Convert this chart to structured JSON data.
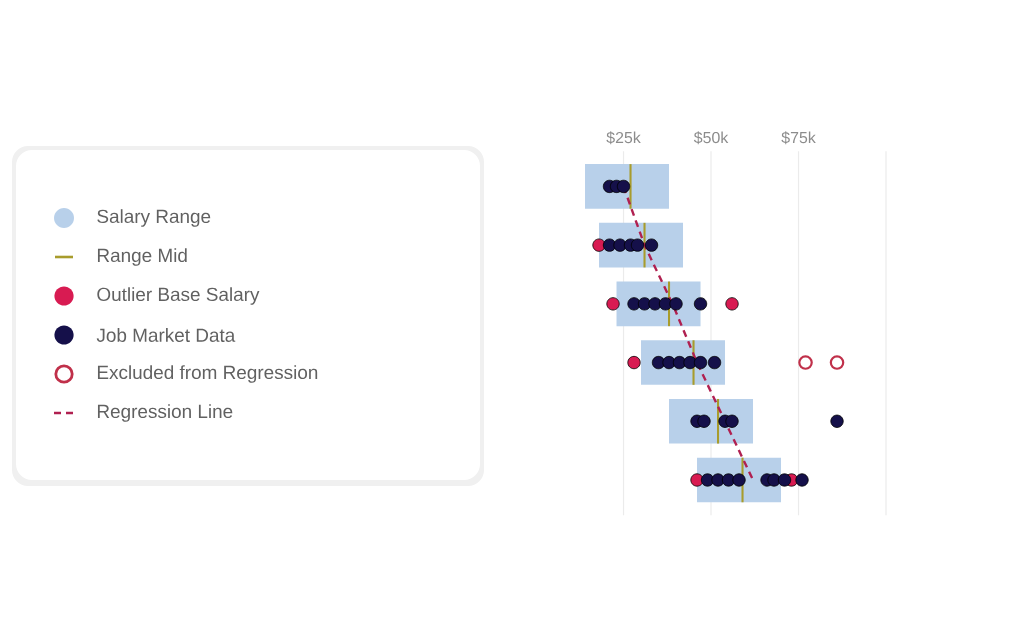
{
  "chart_data": {
    "type": "bar",
    "orientation": "horizontal",
    "categories": [
      null,
      null,
      null,
      null,
      null,
      null
    ],
    "xlim": [
      0,
      100
    ],
    "xticks": [
      {
        "value": 25,
        "label": "$25k"
      },
      {
        "value": 50,
        "label": "$50k"
      },
      {
        "value": 75,
        "label": "$75k"
      },
      {
        "value": 100,
        "label": null
      }
    ],
    "grid": "x",
    "legend": "left",
    "tick_labels": "x",
    "series": [
      {
        "name": "Salary Range",
        "color": "#b8d0ea",
        "base": [
          14,
          18,
          23,
          30,
          38,
          46
        ],
        "values": [
          24,
          24,
          24,
          24,
          24,
          24
        ]
      },
      {
        "name": "Range Mid",
        "type": "bar",
        "color": "#a89c2c",
        "base": [
          26.7,
          30.7,
          37.7,
          44.7,
          51.7,
          58.7
        ],
        "values": [
          0.6,
          0.6,
          0.6,
          0.6,
          0.6,
          0.6
        ]
      },
      {
        "name": "Outlier Base Salary",
        "type": "scatter",
        "marker": "circle",
        "color": "#d81b52",
        "values": [
          null,
          18,
          22,
          28,
          null,
          46
        ]
      },
      {
        "type": "scatter",
        "marker": "circle",
        "color": "#d81b52",
        "values": [
          null,
          null,
          56,
          null,
          null,
          73
        ]
      },
      {
        "name": "Job Market Data",
        "type": "scatter",
        "marker": "circle",
        "color": "#15104a",
        "values": [
          21,
          21,
          28,
          35,
          46,
          49
        ]
      },
      {
        "type": "scatter",
        "marker": "circle",
        "color": "#15104a",
        "values": [
          23,
          24,
          31,
          38,
          48,
          52
        ]
      },
      {
        "type": "scatter",
        "marker": "circle",
        "color": "#15104a",
        "values": [
          25,
          27,
          34,
          41,
          54,
          55
        ]
      },
      {
        "type": "scatter",
        "marker": "circle",
        "color": "#15104a",
        "values": [
          null,
          29,
          37,
          44,
          56,
          58
        ]
      },
      {
        "type": "scatter",
        "marker": "circle",
        "color": "#15104a",
        "values": [
          null,
          33,
          40,
          47,
          86,
          66
        ]
      },
      {
        "type": "scatter",
        "marker": "circle",
        "color": "#15104a",
        "values": [
          null,
          null,
          null,
          51,
          null,
          68
        ]
      },
      {
        "type": "scatter",
        "marker": "circle",
        "color": "#15104a",
        "values": [
          null,
          null,
          47,
          null,
          null,
          71
        ]
      },
      {
        "type": "scatter",
        "marker": "circle",
        "color": "#15104a",
        "values": [
          null,
          null,
          null,
          null,
          null,
          76
        ]
      },
      {
        "name": "Excluded from Regression",
        "type": "scatter",
        "marker": "circle-open",
        "color": "#c0304a",
        "values": [
          null,
          null,
          null,
          77,
          null,
          null
        ]
      },
      {
        "type": "scatter",
        "marker": "circle-open",
        "color": "#c0304a",
        "values": [
          null,
          null,
          null,
          86,
          null,
          null
        ]
      },
      {
        "name": "Regression Line",
        "type": "line",
        "line_style": "dashed",
        "color": "#b02050",
        "values": [
          25,
          31,
          39,
          46,
          54,
          62
        ]
      }
    ]
  }
}
